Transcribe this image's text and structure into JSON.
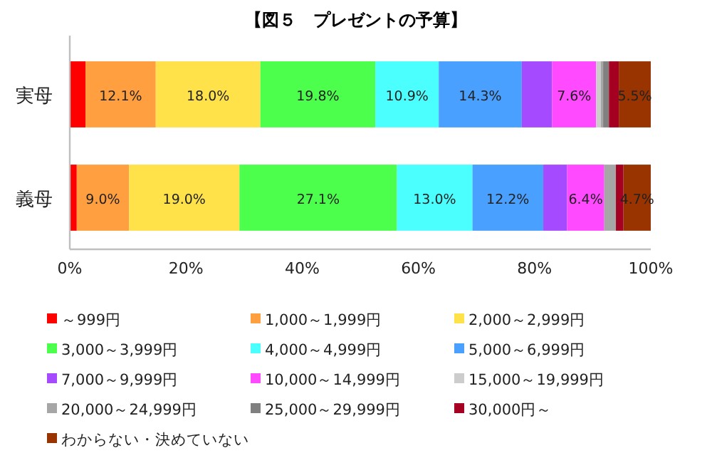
{
  "chart_data": {
    "type": "bar",
    "orientation": "horizontal",
    "stacked": true,
    "title": "【図５　プレゼントの予算】",
    "categories": [
      "実母",
      "義母"
    ],
    "xlim": [
      0,
      100
    ],
    "xticks": [
      {
        "value": 0,
        "label": "0%"
      },
      {
        "value": 20,
        "label": "20%"
      },
      {
        "value": 40,
        "label": "40%"
      },
      {
        "value": 60,
        "label": "60%"
      },
      {
        "value": 80,
        "label": "80%"
      },
      {
        "value": 100,
        "label": "100%"
      }
    ],
    "grid": false,
    "legend": "bottom",
    "series": [
      {
        "name": "～999円",
        "color": "#ff0000",
        "values": [
          2.7,
          1.2
        ],
        "value_labels": [
          null,
          null
        ]
      },
      {
        "name": "1,000～1,999円",
        "color": "#ff9f40",
        "values": [
          12.1,
          9.0
        ],
        "value_labels": [
          "12.1%",
          "9.0%"
        ]
      },
      {
        "name": "2,000～2,999円",
        "color": "#ffe24a",
        "values": [
          18.0,
          19.0
        ],
        "value_labels": [
          "18.0%",
          "19.0%"
        ]
      },
      {
        "name": "3,000～3,999円",
        "color": "#4cff4c",
        "values": [
          19.8,
          27.1
        ],
        "value_labels": [
          "19.8%",
          "27.1%"
        ]
      },
      {
        "name": "4,000～4,999円",
        "color": "#4cffff",
        "values": [
          10.9,
          13.0
        ],
        "value_labels": [
          "10.9%",
          "13.0%"
        ]
      },
      {
        "name": "5,000～6,999円",
        "color": "#4aa0ff",
        "values": [
          14.3,
          12.2
        ],
        "value_labels": [
          "14.3%",
          "12.2%"
        ]
      },
      {
        "name": "7,000～9,999円",
        "color": "#a64aff",
        "values": [
          5.2,
          4.1
        ],
        "value_labels": [
          null,
          null
        ]
      },
      {
        "name": "10,000～14,999円",
        "color": "#ff4aff",
        "values": [
          7.6,
          6.4
        ],
        "value_labels": [
          "7.6%",
          "6.4%"
        ]
      },
      {
        "name": "15,000～19,999円",
        "color": "#cccccc",
        "values": [
          0.8,
          null
        ],
        "value_labels": [
          null,
          null
        ]
      },
      {
        "name": "20,000～24,999円",
        "color": "#a6a6a6",
        "values": [
          0.4,
          2.0
        ],
        "value_labels": [
          null,
          null
        ]
      },
      {
        "name": "25,000～29,999円",
        "color": "#808080",
        "values": [
          1.0,
          0.0
        ],
        "value_labels": [
          null,
          null
        ]
      },
      {
        "name": "30,000円～",
        "color": "#a50021",
        "values": [
          1.7,
          1.3
        ],
        "value_labels": [
          null,
          null
        ]
      },
      {
        "name": "わからない・決めていない",
        "color": "#993300",
        "values": [
          5.5,
          4.7
        ],
        "value_labels": [
          "5.5%",
          "4.7%"
        ]
      }
    ]
  }
}
